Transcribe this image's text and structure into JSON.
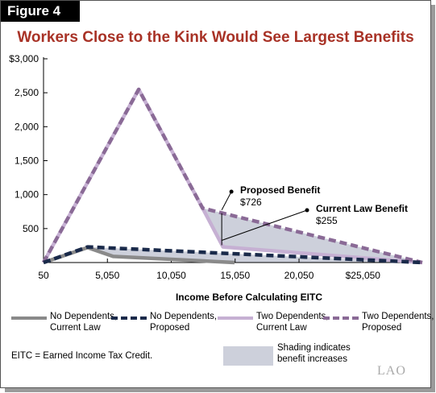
{
  "figure_label": "Figure 4",
  "chart_data": {
    "type": "line",
    "title": "Workers Close to the Kink Would See Largest Benefits",
    "xlabel": "Income Before Calculating EITC",
    "ylabel": "",
    "xlim": [
      50,
      29700
    ],
    "ylim": [
      0,
      3000
    ],
    "x_tick_labels": [
      "50",
      "5,050",
      "10,050",
      "15,050",
      "20,050",
      "$25,050"
    ],
    "x_tick_values": [
      50,
      5050,
      10050,
      15050,
      20050,
      25050
    ],
    "y_tick_labels": [
      "$3,000",
      "2,500",
      "2,000",
      "1,500",
      "1,000",
      "500"
    ],
    "y_tick_values": [
      3000,
      2500,
      2000,
      1500,
      1000,
      500
    ],
    "grid": false,
    "legend_position": "bottom",
    "series": [
      {
        "name": "No Dependents, Current Law",
        "color": "#8a8a8a",
        "style": "solid",
        "x": [
          50,
          3500,
          5500,
          15000
        ],
        "y": [
          0,
          220,
          90,
          0
        ]
      },
      {
        "name": "No Dependents, Proposed",
        "color": "#1a2a4a",
        "style": "dashed",
        "x": [
          50,
          3500,
          29700
        ],
        "y": [
          0,
          230,
          0
        ]
      },
      {
        "name": "Two Dependents, Current Law",
        "color": "#c6b0d3",
        "style": "solid",
        "x": [
          50,
          7500,
          12500,
          14100,
          29700
        ],
        "y": [
          0,
          2550,
          800,
          230,
          0
        ]
      },
      {
        "name": "Two Dependents, Proposed",
        "color": "#8a6a96",
        "style": "dashed",
        "x": [
          50,
          7500,
          12500,
          29700
        ],
        "y": [
          0,
          2550,
          800,
          0
        ]
      }
    ],
    "shading": {
      "label_line1": "Shading indicates",
      "label_line2": "benefit increases",
      "color": "#cdd0db"
    },
    "annotations": [
      {
        "title": "Proposed Benefit",
        "value": "$726",
        "x": 14000,
        "y": 726
      },
      {
        "title": "Current Law Benefit",
        "value": "$255",
        "x": 14000,
        "y": 255
      }
    ]
  },
  "legend": [
    {
      "line1": "No Dependents,",
      "line2": "Current Law",
      "color": "#8a8a8a",
      "style": "solid"
    },
    {
      "line1": "No Dependents,",
      "line2": "Proposed",
      "color": "#1a2a4a",
      "style": "dashed"
    },
    {
      "line1": "Two Dependents,",
      "line2": "Current Law",
      "color": "#c6b0d3",
      "style": "solid"
    },
    {
      "line1": "Two Dependents,",
      "line2": "Proposed",
      "color": "#8a6a96",
      "style": "dashed"
    }
  ],
  "footnote": "EITC = Earned Income Tax Credit.",
  "logo": "LAO"
}
